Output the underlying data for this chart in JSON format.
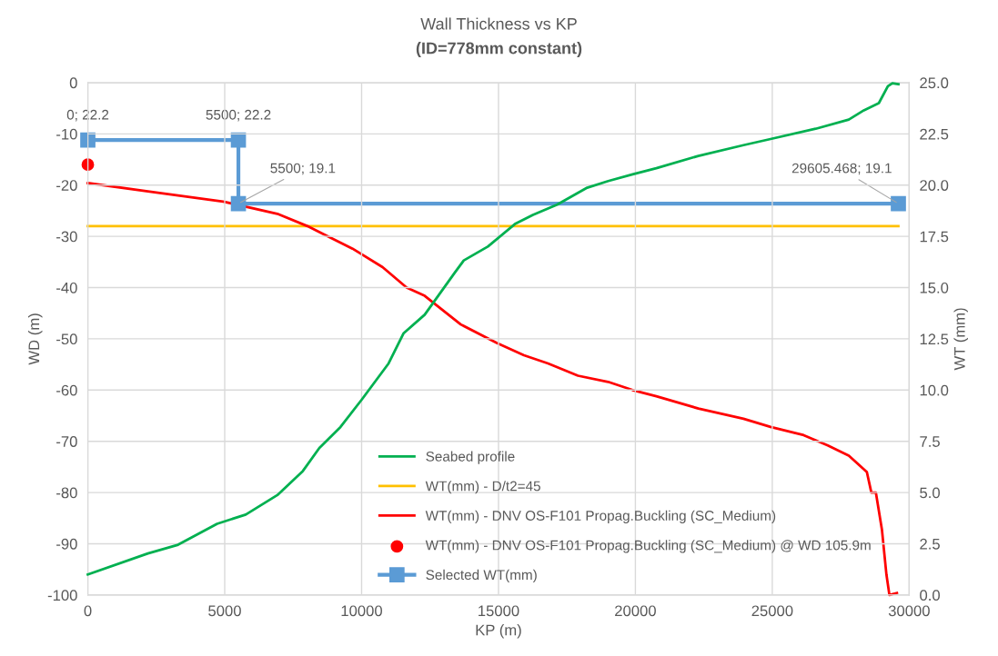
{
  "chart_data": {
    "type": "line",
    "title": "Wall Thickness vs KP",
    "subtitle": "(ID=778mm constant)",
    "xlabel": "KP (m)",
    "ylabel": "WD (m)",
    "y2label": "WT (mm)",
    "xlim": [
      0,
      30000
    ],
    "xticks": [
      0,
      5000,
      10000,
      15000,
      20000,
      25000,
      30000
    ],
    "ylim": [
      -100,
      0
    ],
    "yticks": [
      -100,
      -90,
      -80,
      -70,
      -60,
      -50,
      -40,
      -30,
      -20,
      -10,
      0
    ],
    "y2lim": [
      0,
      25
    ],
    "y2ticks": [
      {
        "value": 0,
        "label": "0.0"
      },
      {
        "value": 2.5,
        "label": "2.5"
      },
      {
        "value": 5,
        "label": "5.0"
      },
      {
        "value": 7.5,
        "label": "7.5"
      },
      {
        "value": 10,
        "label": "10.0"
      },
      {
        "value": 12.5,
        "label": "12.5"
      },
      {
        "value": 15,
        "label": "15.0"
      },
      {
        "value": 17.5,
        "label": "17.5"
      },
      {
        "value": 20,
        "label": "20.0"
      },
      {
        "value": 22.5,
        "label": "22.5"
      },
      {
        "value": 25,
        "label": "25.0"
      }
    ],
    "grid": true,
    "legend": "bottom",
    "series": [
      {
        "name": "Seabed profile",
        "color": "#00b050",
        "x": [
          0,
          2195,
          3296,
          4723,
          5768,
          6922,
          7854,
          8458,
          9229,
          10000,
          10986,
          11536,
          12304,
          13402,
          13732,
          14611,
          15600,
          16259,
          17139,
          18240,
          19008,
          19898,
          20765,
          22300,
          23949,
          24937,
          26585,
          27795,
          28346,
          28892,
          29222,
          29387,
          29608
        ],
        "values": [
          -96.0,
          -91.9,
          -90.2,
          -86.1,
          -84.3,
          -80.5,
          -75.8,
          -71.3,
          -67.2,
          -61.9,
          -54.8,
          -48.9,
          -45.3,
          -37.1,
          -34.7,
          -32.0,
          -27.6,
          -25.8,
          -23.8,
          -20.5,
          -19.2,
          -17.9,
          -16.7,
          -14.3,
          -12.2,
          -11.0,
          -9.0,
          -7.2,
          -5.4,
          -4.0,
          -0.7,
          -0.1,
          -0.3
        ]
      },
      {
        "name": "WT(mm) - D/t2=45",
        "axis": "y2",
        "color": "#ffc000",
        "x": [
          0,
          29605
        ],
        "values": [
          18.0,
          18.0
        ]
      },
      {
        "name": "WT(mm) - DNV OS-F101 Propag.Buckling (SC_Medium)",
        "axis": "y2",
        "color": "#ff0000",
        "x": [
          0,
          2195,
          4944,
          6922,
          8021,
          9668,
          10765,
          11645,
          12304,
          13623,
          14941,
          15930,
          16809,
          17903,
          19005,
          19898,
          20765,
          22300,
          23949,
          24937,
          26147,
          27027,
          27795,
          28454,
          28619,
          28783,
          29004,
          29169,
          29278,
          29552
        ],
        "values": [
          20.1,
          19.7,
          19.2,
          18.6,
          18.0,
          16.9,
          16.0,
          15.0,
          14.6,
          13.2,
          12.3,
          11.7,
          11.3,
          10.7,
          10.4,
          10.0,
          9.7,
          9.1,
          8.6,
          8.2,
          7.8,
          7.3,
          6.8,
          6.0,
          5.0,
          5.0,
          3.2,
          1.0,
          0.0,
          0.1
        ]
      },
      {
        "name": "WT(mm) - DNV OS-F101 Propag.Buckling (SC_Medium) @ WD 105.9m",
        "type": "scatter",
        "axis": "y2",
        "marker": "circle",
        "color": "#ff0000",
        "x": [
          0
        ],
        "values": [
          21.0
        ]
      },
      {
        "name": "Selected WT(mm)",
        "axis": "y2",
        "marker": "square",
        "color": "#5b9bd5",
        "x": [
          0,
          5500,
          5500,
          29605.468
        ],
        "values": [
          22.2,
          22.2,
          19.1,
          19.1
        ],
        "value_labels": [
          "0; 22.2",
          "5500; 22.2",
          "5500; 19.1",
          "29605.468; 19.1"
        ]
      }
    ]
  }
}
